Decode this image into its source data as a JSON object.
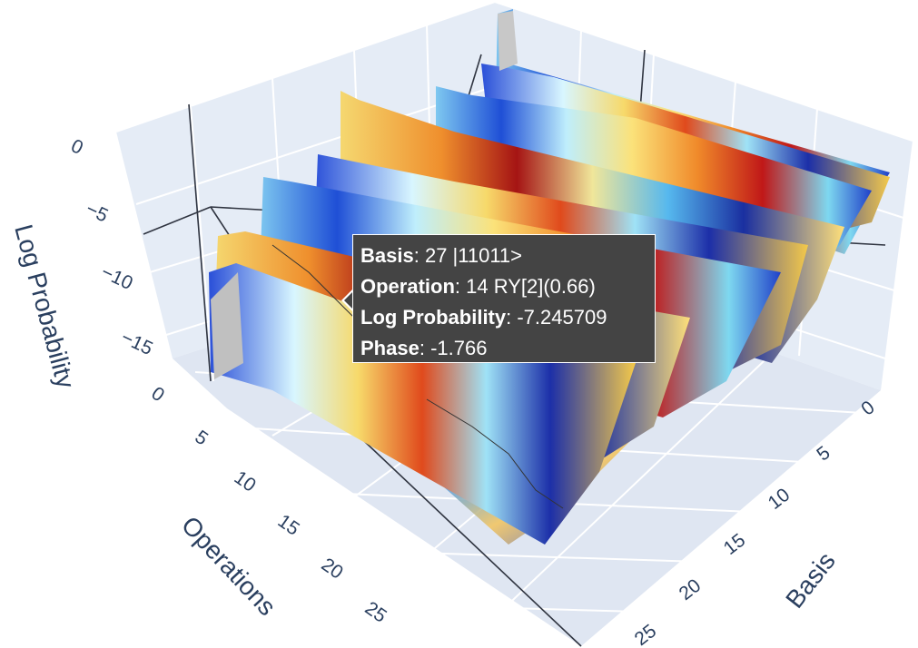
{
  "chart_data": {
    "type": "surface",
    "axes": {
      "x": {
        "title": "Basis",
        "ticks": [
          "0",
          "5",
          "10",
          "15",
          "20",
          "25"
        ]
      },
      "y": {
        "title": "Operations",
        "ticks": [
          "0",
          "5",
          "10",
          "15",
          "20",
          "25"
        ]
      },
      "z": {
        "title": "Log Probability",
        "ticks": [
          "0",
          "−5",
          "−10",
          "−15"
        ],
        "range": [
          -17,
          0
        ]
      }
    },
    "colorscale": "Jet",
    "grid": true,
    "hover": {
      "basis_label": "Basis",
      "basis_value": "27 |11011>",
      "operation_label": "Operation",
      "operation_value": "14 RY[2](0.66)",
      "logprob_label": "Log Probability",
      "logprob_value": "-7.245709",
      "phase_label": "Phase",
      "phase_value": "-1.766"
    }
  }
}
